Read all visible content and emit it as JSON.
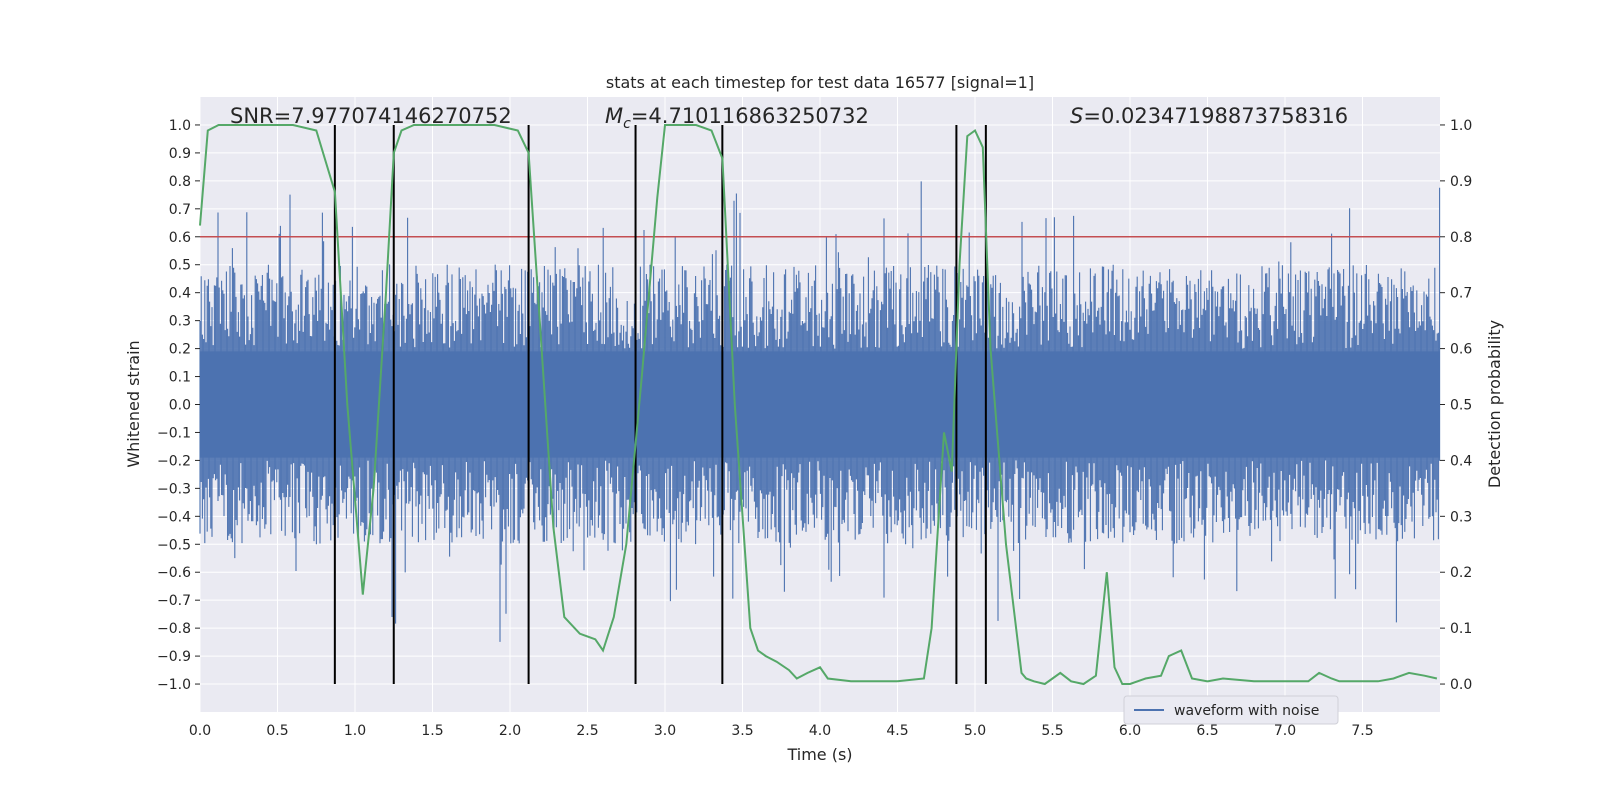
{
  "chart_data": {
    "type": "line",
    "title": "stats at each timestep for test data 16577 [signal=1]",
    "xlabel": "Time (s)",
    "ylabel": "Whitened strain",
    "y2label": "Detection probability",
    "xlim": [
      0,
      8.0
    ],
    "ylim": [
      -1.1,
      1.1
    ],
    "y2lim": [
      -0.05,
      1.05
    ],
    "x_ticks": [
      0.0,
      0.5,
      1.0,
      1.5,
      2.0,
      2.5,
      3.0,
      3.5,
      4.0,
      4.5,
      5.0,
      5.5,
      6.0,
      6.5,
      7.0,
      7.5
    ],
    "y_ticks": [
      1.0,
      0.9,
      0.8,
      0.7,
      0.6,
      0.5,
      0.4,
      0.3,
      0.2,
      0.1,
      0.0,
      -0.1,
      -0.2,
      -0.3,
      -0.4,
      -0.5,
      -0.6,
      -0.7,
      -0.8,
      -0.9,
      -1.0
    ],
    "y2_ticks": [
      1.0,
      0.9,
      0.8,
      0.7,
      0.6,
      0.5,
      0.4,
      0.3,
      0.2,
      0.1,
      0.0
    ],
    "annotations": {
      "snr_text": "SNR=7.977074146270752",
      "mc_symbol": "M",
      "mc_sub": "c",
      "mc_value": "=4.710116863250732",
      "s_symbol": "S",
      "s_value": "=0.02347198873758316"
    },
    "threshold": {
      "value": 0.8,
      "axis": "y2",
      "color": "#c44e52"
    },
    "vertical_lines": [
      0.87,
      1.25,
      2.12,
      2.81,
      3.37,
      4.88,
      5.07
    ],
    "legend": {
      "label": "waveform with noise",
      "position": "lower right"
    },
    "series": [
      {
        "name": "waveform with noise",
        "axis": "y",
        "color": "#4c72b0",
        "style": "dense noise (whitened strain), approx. band -0.45..0.45 with spikes up to ~0.95 and down to ~-0.95"
      },
      {
        "name": "detection probability",
        "axis": "y2",
        "color": "#55a868",
        "x": [
          0.0,
          0.05,
          0.12,
          0.2,
          0.4,
          0.6,
          0.75,
          0.87,
          0.95,
          1.05,
          1.12,
          1.2,
          1.25,
          1.3,
          1.38,
          1.5,
          1.9,
          2.05,
          2.12,
          2.18,
          2.28,
          2.35,
          2.45,
          2.55,
          2.6,
          2.67,
          2.75,
          2.85,
          2.95,
          3.0,
          3.2,
          3.3,
          3.37,
          3.45,
          3.55,
          3.6,
          3.65,
          3.72,
          3.8,
          3.85,
          3.92,
          4.0,
          4.05,
          4.2,
          4.5,
          4.67,
          4.72,
          4.8,
          4.85,
          4.9,
          4.95,
          5.0,
          5.05,
          5.1,
          5.2,
          5.3,
          5.33,
          5.38,
          5.45,
          5.5,
          5.55,
          5.62,
          5.7,
          5.78,
          5.85,
          5.9,
          5.95,
          6.0,
          6.1,
          6.2,
          6.25,
          6.33,
          6.4,
          6.5,
          6.6,
          6.8,
          7.0,
          7.15,
          7.22,
          7.3,
          7.35,
          7.5,
          7.6,
          7.7,
          7.8,
          7.9,
          7.98
        ],
        "y": [
          0.82,
          0.99,
          1.0,
          1.0,
          1.0,
          1.0,
          0.99,
          0.88,
          0.5,
          0.16,
          0.35,
          0.7,
          0.95,
          0.99,
          1.0,
          1.0,
          1.0,
          0.99,
          0.95,
          0.7,
          0.28,
          0.12,
          0.09,
          0.08,
          0.06,
          0.12,
          0.25,
          0.55,
          0.87,
          1.0,
          1.0,
          0.99,
          0.94,
          0.5,
          0.1,
          0.06,
          0.05,
          0.04,
          0.025,
          0.01,
          0.02,
          0.03,
          0.01,
          0.005,
          0.005,
          0.01,
          0.1,
          0.45,
          0.38,
          0.75,
          0.98,
          0.99,
          0.96,
          0.6,
          0.25,
          0.02,
          0.01,
          0.005,
          0.0,
          0.01,
          0.02,
          0.005,
          0.0,
          0.015,
          0.2,
          0.03,
          0.0,
          0.0,
          0.01,
          0.015,
          0.05,
          0.06,
          0.01,
          0.005,
          0.01,
          0.005,
          0.005,
          0.005,
          0.02,
          0.01,
          0.005,
          0.005,
          0.005,
          0.01,
          0.02,
          0.015,
          0.01
        ]
      }
    ]
  }
}
